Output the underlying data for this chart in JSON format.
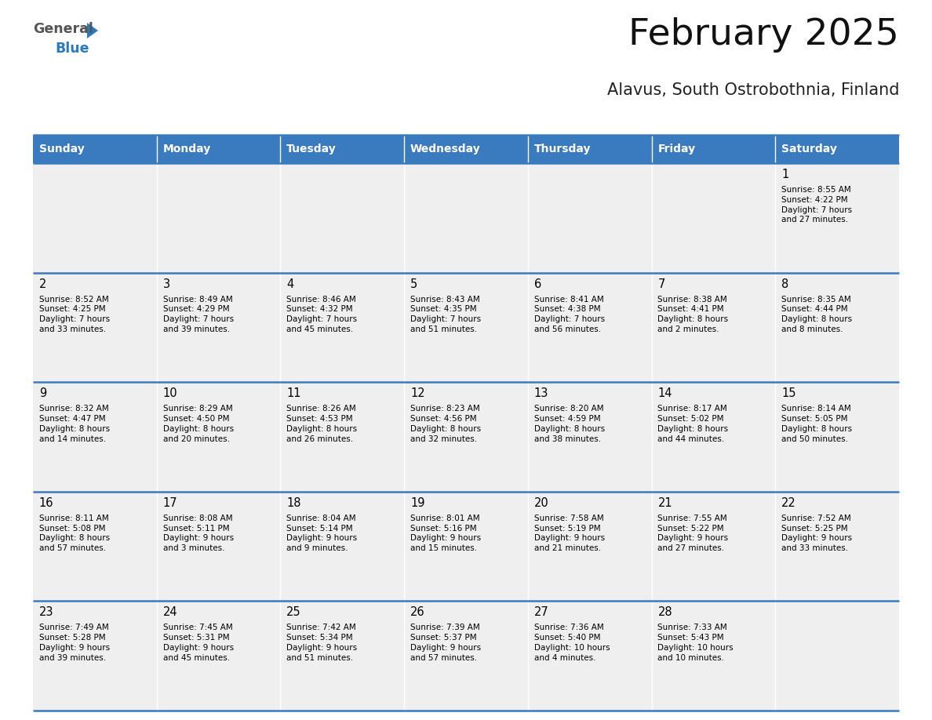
{
  "title": "February 2025",
  "subtitle": "Alavus, South Ostrobothnia, Finland",
  "header_color": "#3a7abf",
  "header_text_color": "#ffffff",
  "days_of_week": [
    "Sunday",
    "Monday",
    "Tuesday",
    "Wednesday",
    "Thursday",
    "Friday",
    "Saturday"
  ],
  "cell_bg_color": "#efefef",
  "border_color": "#3a7abf",
  "text_color": "#000000",
  "title_color": "#111111",
  "subtitle_color": "#222222",
  "calendar": [
    [
      {
        "day": "",
        "info": ""
      },
      {
        "day": "",
        "info": ""
      },
      {
        "day": "",
        "info": ""
      },
      {
        "day": "",
        "info": ""
      },
      {
        "day": "",
        "info": ""
      },
      {
        "day": "",
        "info": ""
      },
      {
        "day": "1",
        "info": "Sunrise: 8:55 AM\nSunset: 4:22 PM\nDaylight: 7 hours\nand 27 minutes."
      }
    ],
    [
      {
        "day": "2",
        "info": "Sunrise: 8:52 AM\nSunset: 4:25 PM\nDaylight: 7 hours\nand 33 minutes."
      },
      {
        "day": "3",
        "info": "Sunrise: 8:49 AM\nSunset: 4:29 PM\nDaylight: 7 hours\nand 39 minutes."
      },
      {
        "day": "4",
        "info": "Sunrise: 8:46 AM\nSunset: 4:32 PM\nDaylight: 7 hours\nand 45 minutes."
      },
      {
        "day": "5",
        "info": "Sunrise: 8:43 AM\nSunset: 4:35 PM\nDaylight: 7 hours\nand 51 minutes."
      },
      {
        "day": "6",
        "info": "Sunrise: 8:41 AM\nSunset: 4:38 PM\nDaylight: 7 hours\nand 56 minutes."
      },
      {
        "day": "7",
        "info": "Sunrise: 8:38 AM\nSunset: 4:41 PM\nDaylight: 8 hours\nand 2 minutes."
      },
      {
        "day": "8",
        "info": "Sunrise: 8:35 AM\nSunset: 4:44 PM\nDaylight: 8 hours\nand 8 minutes."
      }
    ],
    [
      {
        "day": "9",
        "info": "Sunrise: 8:32 AM\nSunset: 4:47 PM\nDaylight: 8 hours\nand 14 minutes."
      },
      {
        "day": "10",
        "info": "Sunrise: 8:29 AM\nSunset: 4:50 PM\nDaylight: 8 hours\nand 20 minutes."
      },
      {
        "day": "11",
        "info": "Sunrise: 8:26 AM\nSunset: 4:53 PM\nDaylight: 8 hours\nand 26 minutes."
      },
      {
        "day": "12",
        "info": "Sunrise: 8:23 AM\nSunset: 4:56 PM\nDaylight: 8 hours\nand 32 minutes."
      },
      {
        "day": "13",
        "info": "Sunrise: 8:20 AM\nSunset: 4:59 PM\nDaylight: 8 hours\nand 38 minutes."
      },
      {
        "day": "14",
        "info": "Sunrise: 8:17 AM\nSunset: 5:02 PM\nDaylight: 8 hours\nand 44 minutes."
      },
      {
        "day": "15",
        "info": "Sunrise: 8:14 AM\nSunset: 5:05 PM\nDaylight: 8 hours\nand 50 minutes."
      }
    ],
    [
      {
        "day": "16",
        "info": "Sunrise: 8:11 AM\nSunset: 5:08 PM\nDaylight: 8 hours\nand 57 minutes."
      },
      {
        "day": "17",
        "info": "Sunrise: 8:08 AM\nSunset: 5:11 PM\nDaylight: 9 hours\nand 3 minutes."
      },
      {
        "day": "18",
        "info": "Sunrise: 8:04 AM\nSunset: 5:14 PM\nDaylight: 9 hours\nand 9 minutes."
      },
      {
        "day": "19",
        "info": "Sunrise: 8:01 AM\nSunset: 5:16 PM\nDaylight: 9 hours\nand 15 minutes."
      },
      {
        "day": "20",
        "info": "Sunrise: 7:58 AM\nSunset: 5:19 PM\nDaylight: 9 hours\nand 21 minutes."
      },
      {
        "day": "21",
        "info": "Sunrise: 7:55 AM\nSunset: 5:22 PM\nDaylight: 9 hours\nand 27 minutes."
      },
      {
        "day": "22",
        "info": "Sunrise: 7:52 AM\nSunset: 5:25 PM\nDaylight: 9 hours\nand 33 minutes."
      }
    ],
    [
      {
        "day": "23",
        "info": "Sunrise: 7:49 AM\nSunset: 5:28 PM\nDaylight: 9 hours\nand 39 minutes."
      },
      {
        "day": "24",
        "info": "Sunrise: 7:45 AM\nSunset: 5:31 PM\nDaylight: 9 hours\nand 45 minutes."
      },
      {
        "day": "25",
        "info": "Sunrise: 7:42 AM\nSunset: 5:34 PM\nDaylight: 9 hours\nand 51 minutes."
      },
      {
        "day": "26",
        "info": "Sunrise: 7:39 AM\nSunset: 5:37 PM\nDaylight: 9 hours\nand 57 minutes."
      },
      {
        "day": "27",
        "info": "Sunrise: 7:36 AM\nSunset: 5:40 PM\nDaylight: 10 hours\nand 4 minutes."
      },
      {
        "day": "28",
        "info": "Sunrise: 7:33 AM\nSunset: 5:43 PM\nDaylight: 10 hours\nand 10 minutes."
      },
      {
        "day": "",
        "info": ""
      }
    ]
  ],
  "logo_text_general": "General",
  "logo_text_blue": "Blue",
  "logo_color_general": "#555555",
  "logo_color_blue": "#2a7abf"
}
